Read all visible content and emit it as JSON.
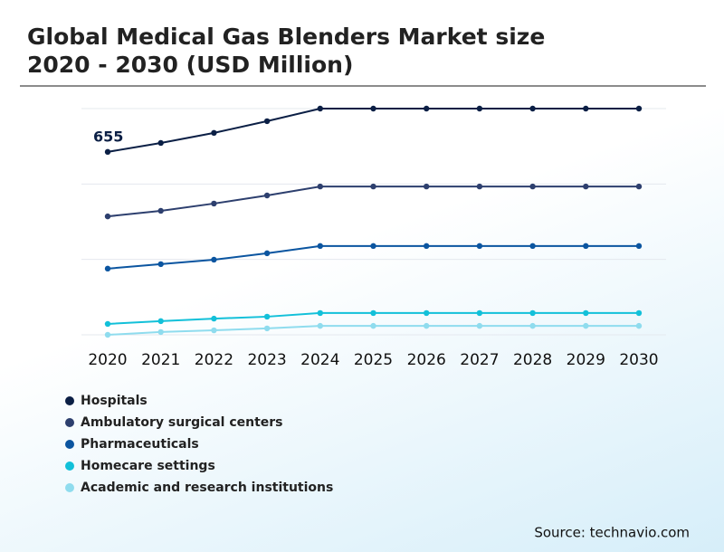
{
  "chart_data": {
    "type": "line",
    "title": [
      "Global Medical Gas Blenders Market size",
      "2020 - 2030 (USD Million)"
    ],
    "categories": [
      "2020",
      "2021",
      "2022",
      "2023",
      "2024",
      "2025",
      "2026",
      "2027",
      "2028",
      "2029",
      "2030"
    ],
    "series": [
      {
        "name": "Hospitals",
        "color": "#0b1f45",
        "values": [
          655,
          687,
          723,
          765,
          810,
          810,
          810,
          810,
          810,
          810,
          810
        ]
      },
      {
        "name": "Ambulatory surgical centers",
        "color": "#2d3f6e",
        "values": [
          424,
          444,
          470,
          499,
          531,
          531,
          531,
          531,
          531,
          531,
          531
        ]
      },
      {
        "name": "Pharmaceuticals",
        "color": "#0b55a0",
        "values": [
          237,
          253,
          269,
          292,
          318,
          318,
          318,
          318,
          318,
          318,
          318
        ]
      },
      {
        "name": "Homecare settings",
        "color": "#12c0d9",
        "values": [
          39,
          49,
          58,
          65,
          78,
          78,
          78,
          78,
          78,
          78,
          78
        ]
      },
      {
        "name": "Academic and research institutions",
        "color": "#8fdcee",
        "values": [
          0,
          10,
          16,
          23,
          32,
          32,
          32,
          32,
          32,
          32,
          32
        ]
      }
    ],
    "data_labels": [
      {
        "series": 0,
        "index": 0
      }
    ],
    "ylim": [
      0,
      810
    ],
    "yticks": [
      0,
      270,
      540,
      810
    ],
    "grid": true,
    "source": "Source: technavio.com"
  }
}
